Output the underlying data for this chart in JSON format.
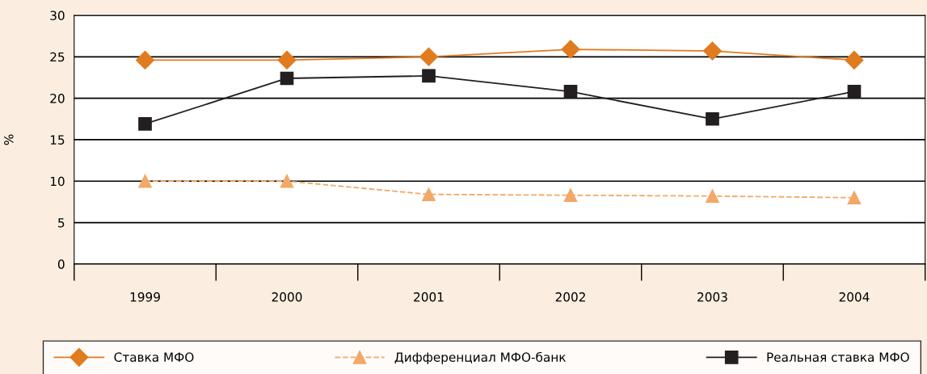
{
  "chart_data": {
    "type": "line",
    "ylabel": "%",
    "categories": [
      "1999",
      "2000",
      "2001",
      "2002",
      "2003",
      "2004"
    ],
    "series": [
      {
        "name": "Ставка МФО",
        "color": "#e07b1f",
        "marker": "diamond",
        "line_style": "solid",
        "values": [
          24.6,
          24.6,
          25.0,
          25.9,
          25.7,
          24.6
        ]
      },
      {
        "name": "Дифференциал МФО-банк",
        "color": "#f2a866",
        "marker": "triangle",
        "line_style": "dashed",
        "values": [
          10.0,
          10.0,
          8.4,
          8.3,
          8.2,
          8.0
        ]
      },
      {
        "name": "Реальная ставка МФО",
        "color": "#231f20",
        "marker": "square",
        "line_style": "solid",
        "values": [
          16.9,
          22.4,
          22.7,
          20.8,
          17.5,
          20.8
        ]
      }
    ],
    "ylim": [
      0,
      30
    ],
    "yticks": [
      0,
      5,
      10,
      15,
      20,
      25,
      30
    ],
    "grid": "y",
    "legend": "bottom"
  }
}
